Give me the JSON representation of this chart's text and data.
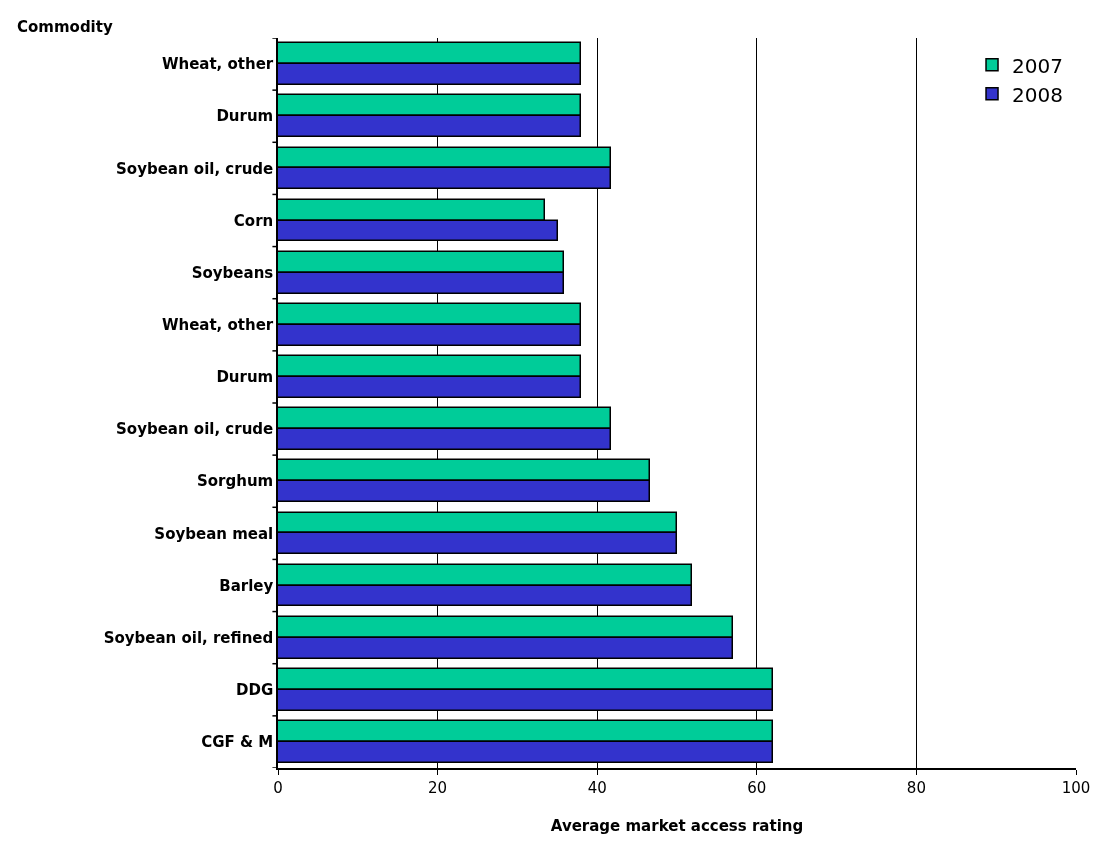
{
  "chart_data": {
    "type": "bar",
    "orientation": "horizontal",
    "xlabel": "Average market access rating",
    "ylabel": "Commodity",
    "categories": [
      "Wheat, other",
      "Durum",
      "Soybean oil, crude",
      "Corn",
      "Soybeans",
      "Wheat, other",
      "Durum",
      "Soybean oil, crude",
      "Sorghum",
      "Soybean meal",
      "Barley",
      "Soybean oil, refined",
      "DDG",
      "CGF & M"
    ],
    "series": [
      {
        "name": "2007",
        "color": "#00cc99",
        "values": [
          38,
          38,
          41.7,
          33.5,
          35.9,
          38,
          38,
          41.7,
          46.6,
          50,
          51.9,
          57,
          62,
          62
        ]
      },
      {
        "name": "2008",
        "color": "#3333cc",
        "values": [
          38,
          38,
          41.7,
          35.1,
          35.9,
          38,
          38,
          41.7,
          46.6,
          50,
          51.9,
          57,
          62,
          62
        ]
      }
    ],
    "xlim": [
      0,
      100
    ],
    "xticks": [
      0,
      20,
      40,
      60,
      80,
      100
    ],
    "grid": "x",
    "legend": "top right"
  }
}
